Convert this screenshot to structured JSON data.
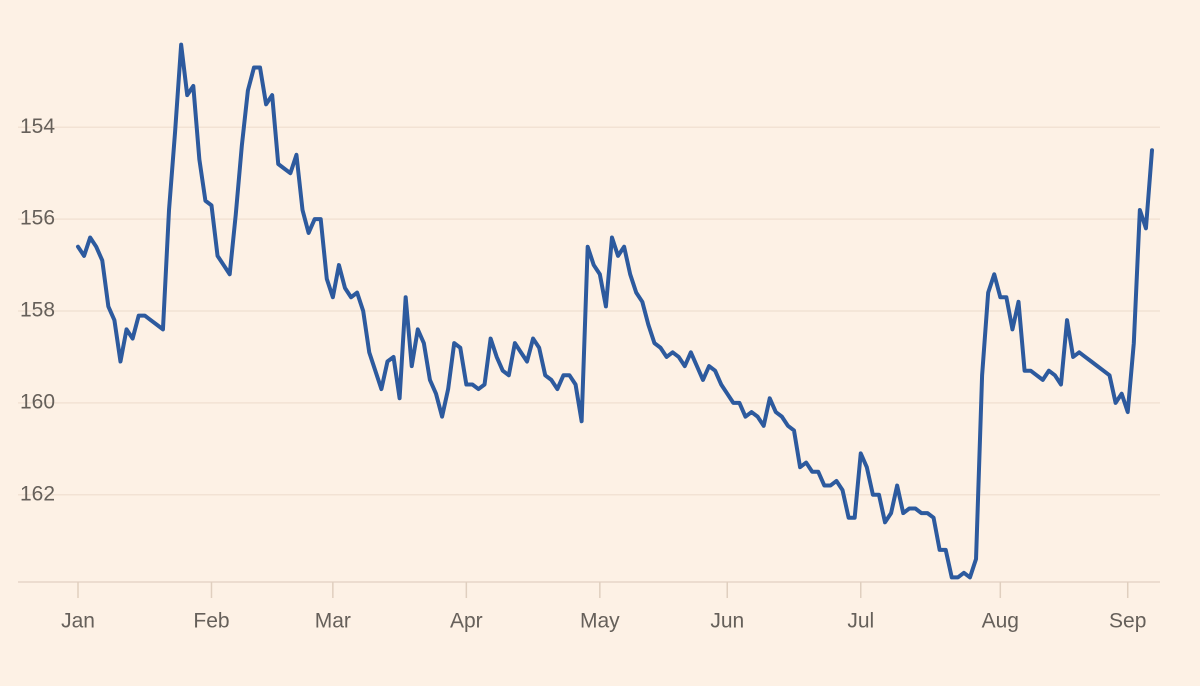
{
  "chart_data": {
    "type": "line",
    "series": [
      {
        "color": "#2d5a9e",
        "values": [
          156.6,
          156.8,
          156.4,
          156.6,
          156.9,
          157.9,
          158.2,
          159.1,
          158.4,
          158.6,
          158.1,
          158.1,
          158.2,
          158.3,
          158.4,
          155.8,
          154.1,
          152.2,
          153.3,
          153.1,
          154.7,
          155.6,
          155.7,
          156.8,
          157.0,
          157.2,
          155.9,
          154.4,
          153.2,
          152.7,
          152.7,
          153.5,
          153.3,
          154.8,
          154.9,
          155.0,
          154.6,
          155.8,
          156.3,
          156.0,
          156.0,
          157.3,
          157.7,
          157.0,
          157.5,
          157.7,
          157.6,
          158.0,
          158.9,
          159.3,
          159.7,
          159.1,
          159.0,
          159.9,
          157.7,
          159.2,
          158.4,
          158.7,
          159.5,
          159.8,
          160.3,
          159.7,
          158.7,
          158.8,
          159.6,
          159.6,
          159.7,
          159.6,
          158.6,
          159.0,
          159.3,
          159.4,
          158.7,
          158.9,
          159.1,
          158.6,
          158.8,
          159.4,
          159.5,
          159.7,
          159.4,
          159.4,
          159.6,
          160.4,
          156.6,
          157.0,
          157.2,
          157.9,
          156.4,
          156.8,
          156.6,
          157.2,
          157.6,
          157.8,
          158.3,
          158.7,
          158.8,
          159.0,
          158.9,
          159.0,
          159.2,
          158.9,
          159.2,
          159.5,
          159.2,
          159.3,
          159.6,
          159.8,
          160.0,
          160.0,
          160.3,
          160.2,
          160.3,
          160.5,
          159.9,
          160.2,
          160.3,
          160.5,
          160.6,
          161.4,
          161.3,
          161.5,
          161.5,
          161.8,
          161.8,
          161.7,
          161.9,
          162.5,
          162.5,
          161.1,
          161.4,
          162.0,
          162.0,
          162.6,
          162.4,
          161.8,
          162.4,
          162.3,
          162.3,
          162.4,
          162.4,
          162.5,
          163.2,
          163.2,
          163.8,
          163.8,
          163.7,
          163.8,
          163.4,
          159.4,
          157.6,
          157.2,
          157.7,
          157.7,
          158.4,
          157.8,
          159.3,
          159.3,
          159.4,
          159.5,
          159.3,
          159.4,
          159.6,
          158.2,
          159.0,
          158.9,
          159.0,
          159.1,
          159.2,
          159.3,
          159.4,
          160.0,
          159.8,
          160.2,
          158.7,
          155.8,
          156.2,
          154.5
        ]
      }
    ],
    "xlim": [
      0,
      177
    ],
    "xticks": [
      {
        "value": 0,
        "label": "Jan"
      },
      {
        "value": 22,
        "label": "Feb"
      },
      {
        "value": 42,
        "label": "Mar"
      },
      {
        "value": 64,
        "label": "Apr"
      },
      {
        "value": 86,
        "label": "May"
      },
      {
        "value": 107,
        "label": "Jun"
      },
      {
        "value": 129,
        "label": "Jul"
      },
      {
        "value": 152,
        "label": "Aug"
      },
      {
        "value": 173,
        "label": "Sep"
      }
    ],
    "ylim": [
      152.1,
      163.9
    ],
    "y_inverted": true,
    "yticks": [
      154,
      156,
      158,
      160,
      162
    ],
    "grid": true
  }
}
